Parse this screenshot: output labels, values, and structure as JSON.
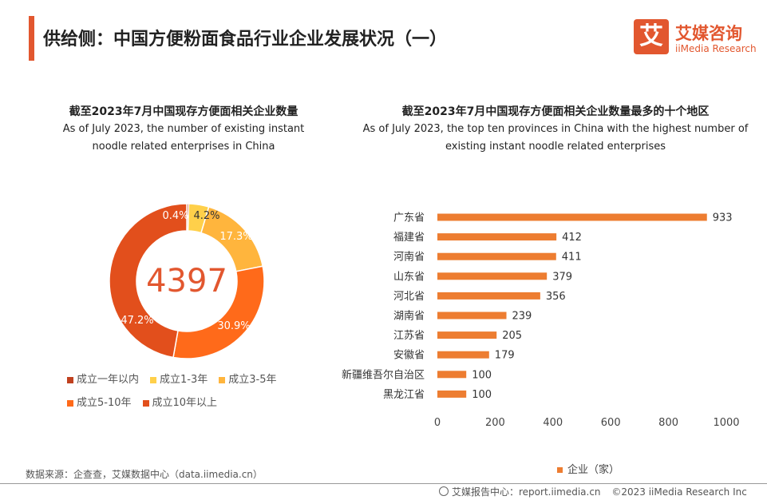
{
  "header": {
    "title": "供给侧：中国方便粉面食品行业企业发展状况（一）",
    "logo_mark": "艾",
    "logo_cn": "艾媒咨询",
    "logo_en": "iiMedia Research"
  },
  "colors": {
    "accent": "#e2572f",
    "bar": "#ed7d31"
  },
  "left_panel": {
    "title_cn": "截至2023年7月中国现存方便面相关企业数量",
    "title_en_1": "As of July 2023, the number of existing instant",
    "title_en_2": "noodle related enterprises in China",
    "center_value": "4397"
  },
  "right_panel": {
    "title_cn": "截至2023年7月中国现存方便面相关企业数量最多的十个地区",
    "title_en_1": "As of July 2023, the top ten provinces in China with the highest number of",
    "title_en_2": "existing instant noodle related enterprises",
    "legend_label": "企业（家）"
  },
  "chart_data": [
    {
      "type": "pie",
      "variant": "donut",
      "center_label": "4397",
      "slices": [
        {
          "label": "成立一年以内",
          "value": 0.4,
          "display": "0.4%",
          "color": "#c0411f"
        },
        {
          "label": "成立1-3年",
          "value": 4.2,
          "display": "4.2%",
          "color": "#ffd04a"
        },
        {
          "label": "成立3-5年",
          "value": 17.3,
          "display": "17.3%",
          "color": "#ffb53d"
        },
        {
          "label": "成立5-10年",
          "value": 30.9,
          "display": "30.9%",
          "color": "#ff6a1a"
        },
        {
          "label": "成立10年以上",
          "value": 47.2,
          "display": "47.2%",
          "color": "#e24f1c"
        }
      ],
      "legend_position": "bottom"
    },
    {
      "type": "bar",
      "orientation": "horizontal",
      "categories": [
        "广东省",
        "福建省",
        "河南省",
        "山东省",
        "河北省",
        "湖南省",
        "江苏省",
        "安徽省",
        "新疆维吾尔自治区",
        "黑龙江省"
      ],
      "series": [
        {
          "name": "企业（家）",
          "values": [
            933,
            412,
            411,
            379,
            356,
            239,
            205,
            179,
            100,
            100
          ]
        }
      ],
      "xlim": [
        0,
        1000
      ],
      "xticks": [
        0,
        200,
        400,
        600,
        800,
        1000
      ],
      "grid": false,
      "legend_position": "bottom"
    }
  ],
  "footer": {
    "source": "数据来源：企查查，艾媒数据中心（data.iimedia.cn）",
    "report_center": "艾媒报告中心：report.iimedia.cn",
    "copyright": "©2023  iiMedia Research  Inc"
  }
}
